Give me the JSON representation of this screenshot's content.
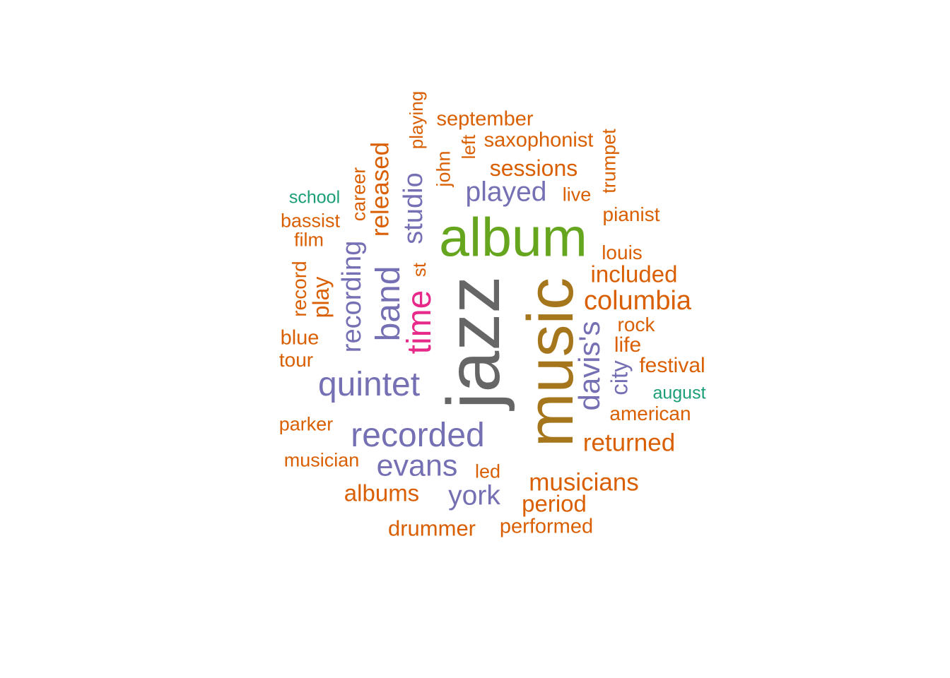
{
  "colors": {
    "orange": "#D95F02",
    "purple": "#7570B3",
    "green": "#66A61E",
    "teal": "#1B9E77",
    "pink": "#E7298A",
    "gold": "#A6761D",
    "gray": "#666666"
  },
  "words": [
    {
      "id": "jazz",
      "text": "jazz",
      "color": "gray"
    },
    {
      "id": "music",
      "text": "music",
      "color": "gold"
    },
    {
      "id": "album",
      "text": "album",
      "color": "green"
    },
    {
      "id": "recorded",
      "text": "recorded",
      "color": "purple"
    },
    {
      "id": "quintet",
      "text": "quintet",
      "color": "purple"
    },
    {
      "id": "band",
      "text": "band",
      "color": "purple"
    },
    {
      "id": "time",
      "text": "time",
      "color": "pink"
    },
    {
      "id": "evans",
      "text": "evans",
      "color": "purple"
    },
    {
      "id": "davis-s",
      "text": "davis's",
      "color": "purple"
    },
    {
      "id": "recording",
      "text": "recording",
      "color": "purple"
    },
    {
      "id": "played",
      "text": "played",
      "color": "purple"
    },
    {
      "id": "studio",
      "text": "studio",
      "color": "purple"
    },
    {
      "id": "york",
      "text": "york",
      "color": "purple"
    },
    {
      "id": "columbia",
      "text": "columbia",
      "color": "orange"
    },
    {
      "id": "released",
      "text": "released",
      "color": "orange"
    },
    {
      "id": "returned",
      "text": "returned",
      "color": "orange"
    },
    {
      "id": "musicians",
      "text": "musicians",
      "color": "orange"
    },
    {
      "id": "albums",
      "text": "albums",
      "color": "orange"
    },
    {
      "id": "included",
      "text": "included",
      "color": "orange"
    },
    {
      "id": "sessions",
      "text": "sessions",
      "color": "orange"
    },
    {
      "id": "city",
      "text": "city",
      "color": "purple"
    },
    {
      "id": "period",
      "text": "period",
      "color": "orange"
    },
    {
      "id": "drummer",
      "text": "drummer",
      "color": "orange"
    },
    {
      "id": "play",
      "text": "play",
      "color": "orange"
    },
    {
      "id": "festival",
      "text": "festival",
      "color": "orange"
    },
    {
      "id": "life",
      "text": "life",
      "color": "orange"
    },
    {
      "id": "saxophonist",
      "text": "saxophonist",
      "color": "orange"
    },
    {
      "id": "september",
      "text": "september",
      "color": "orange"
    },
    {
      "id": "performed",
      "text": "performed",
      "color": "orange"
    },
    {
      "id": "career",
      "text": "career",
      "color": "orange"
    },
    {
      "id": "american",
      "text": "american",
      "color": "orange"
    },
    {
      "id": "pianist",
      "text": "pianist",
      "color": "orange"
    },
    {
      "id": "louis",
      "text": "louis",
      "color": "orange"
    },
    {
      "id": "rock",
      "text": "rock",
      "color": "orange"
    },
    {
      "id": "blue",
      "text": "blue",
      "color": "orange"
    },
    {
      "id": "tour",
      "text": "tour",
      "color": "orange"
    },
    {
      "id": "parker",
      "text": "parker",
      "color": "orange"
    },
    {
      "id": "musician",
      "text": "musician",
      "color": "orange"
    },
    {
      "id": "bassist",
      "text": "bassist",
      "color": "orange"
    },
    {
      "id": "film",
      "text": "film",
      "color": "orange"
    },
    {
      "id": "record",
      "text": "record",
      "color": "orange"
    },
    {
      "id": "playing",
      "text": "playing",
      "color": "orange"
    },
    {
      "id": "john",
      "text": "john",
      "color": "orange"
    },
    {
      "id": "left",
      "text": "left",
      "color": "orange"
    },
    {
      "id": "trumpet",
      "text": "trumpet",
      "color": "orange"
    },
    {
      "id": "live",
      "text": "live",
      "color": "orange"
    },
    {
      "id": "led",
      "text": "led",
      "color": "orange"
    },
    {
      "id": "st",
      "text": "st",
      "color": "orange"
    },
    {
      "id": "school",
      "text": "school",
      "color": "teal"
    },
    {
      "id": "august",
      "text": "august",
      "color": "teal"
    }
  ]
}
